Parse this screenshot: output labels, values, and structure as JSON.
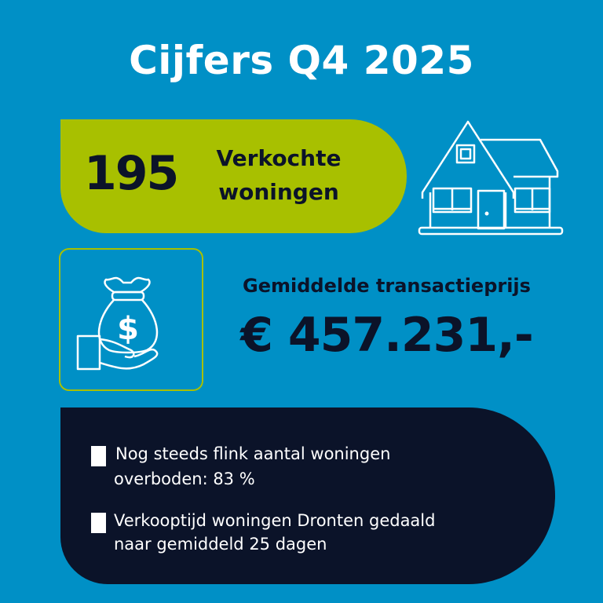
{
  "title": "Cijfers Q4 2025",
  "sold": {
    "count": "195",
    "label_line1": "Verkochte",
    "label_line2": "woningen",
    "icon": "house-icon"
  },
  "price": {
    "label": "Gemiddelde transactieprijs",
    "value": "€ 457.231,-",
    "icon": "money-bag-hand-icon"
  },
  "bullets": [
    {
      "line1": "Nog steeds flink aantal woningen",
      "line2": "overboden: 83 %"
    },
    {
      "line1": "Verkooptijd woningen Dronten gedaald",
      "line2": "naar gemiddeld 25 dagen"
    }
  ],
  "colors": {
    "background": "#0090c6",
    "accent_green": "#a8c000",
    "navy": "#0b1329",
    "white": "#ffffff"
  }
}
